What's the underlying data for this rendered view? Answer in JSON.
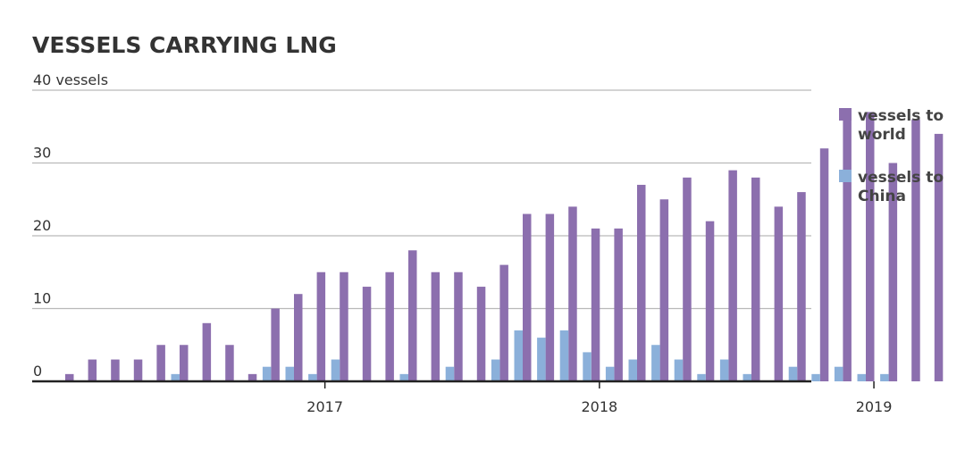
{
  "chart_data": {
    "type": "bar",
    "title": "VESSELS CARRYING LNG",
    "ylabel_unit": "vessels",
    "ylim": [
      0,
      40
    ],
    "y_ticks": [
      {
        "value": 40,
        "label": "40 vessels"
      },
      {
        "value": 30,
        "label": "30"
      },
      {
        "value": 20,
        "label": "20"
      },
      {
        "value": 10,
        "label": "10"
      },
      {
        "value": 0,
        "label": "0"
      }
    ],
    "x_ticks": [
      {
        "index": 11.5,
        "label": "2017"
      },
      {
        "index": 23.5,
        "label": "2018"
      },
      {
        "index": 35.5,
        "label": "2019"
      }
    ],
    "periods": [
      "2016-02",
      "2016-03",
      "2016-04",
      "2016-05",
      "2016-06",
      "2016-07",
      "2016-08",
      "2016-09",
      "2016-10",
      "2016-11",
      "2016-12",
      "2017-01",
      "2017-02",
      "2017-03",
      "2017-04",
      "2017-05",
      "2017-06",
      "2017-07",
      "2017-08",
      "2017-09",
      "2017-10",
      "2017-11",
      "2017-12",
      "2018-01",
      "2018-02",
      "2018-03",
      "2018-04",
      "2018-05",
      "2018-06",
      "2018-07",
      "2018-08",
      "2018-09",
      "2018-10",
      "2018-11",
      "2018-12",
      "2019-01",
      "2019-02",
      "2019-03",
      "2019-04",
      "2019-05"
    ],
    "series": [
      {
        "name": "vessels to world",
        "color": "#8c6fae",
        "values": [
          1,
          3,
          3,
          3,
          5,
          5,
          8,
          5,
          1,
          10,
          12,
          15,
          15,
          13,
          15,
          18,
          15,
          15,
          13,
          16,
          23,
          23,
          24,
          21,
          21,
          27,
          25,
          28,
          22,
          29,
          28,
          24,
          26,
          32,
          36,
          37,
          30,
          36,
          34,
          null
        ]
      },
      {
        "name": "vessels to China",
        "color": "#8bb0da",
        "values": [
          0,
          0,
          0,
          0,
          0,
          1,
          0,
          0,
          0,
          2,
          2,
          1,
          3,
          0,
          0,
          1,
          0,
          2,
          0,
          3,
          7,
          6,
          7,
          4,
          2,
          3,
          5,
          3,
          1,
          3,
          1,
          0,
          2,
          1,
          2,
          1,
          1,
          0,
          0,
          null
        ]
      }
    ],
    "legend": [
      {
        "line1": "vessels to",
        "line2": "world",
        "color": "#8c6fae"
      },
      {
        "line1": "vessels to",
        "line2": "China",
        "color": "#8bb0da"
      }
    ],
    "legend_position": "right",
    "grid": true
  }
}
